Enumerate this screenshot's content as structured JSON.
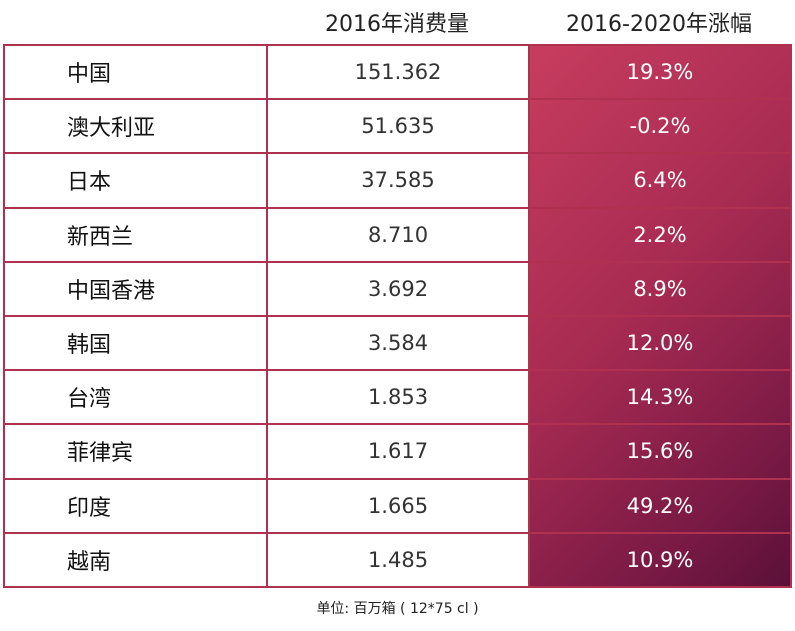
{
  "header": {
    "col2": "2016年消费量",
    "col3": "2016-2020年涨幅"
  },
  "rows": [
    {
      "name": "中国",
      "value": "151.362",
      "growth": "19.3%"
    },
    {
      "name": "澳大利亚",
      "value": "51.635",
      "growth": "-0.2%"
    },
    {
      "name": "日本",
      "value": "37.585",
      "growth": "6.4%"
    },
    {
      "name": "新西兰",
      "value": "8.710",
      "growth": "2.2%"
    },
    {
      "name": "中国香港",
      "value": "3.692",
      "growth": "8.9%"
    },
    {
      "name": "韩国",
      "value": "3.584",
      "growth": "12.0%"
    },
    {
      "name": "台湾",
      "value": "1.853",
      "growth": "14.3%"
    },
    {
      "name": "菲律宾",
      "value": "1.617",
      "growth": "15.6%"
    },
    {
      "name": "印度",
      "value": "1.665",
      "growth": "49.2%"
    },
    {
      "name": "越南",
      "value": "1.485",
      "growth": "10.9%"
    }
  ],
  "footnote": "单位: 百万箱 ( 12*75 cl )",
  "colors": {
    "border": "#b0304f",
    "gradient_start": "#c73d5f",
    "gradient_end": "#5a1038"
  },
  "chart_data": {
    "type": "table",
    "columns": [
      "",
      "2016年消费量",
      "2016-2020年涨幅"
    ],
    "categories": [
      "中国",
      "澳大利亚",
      "日本",
      "新西兰",
      "中国香港",
      "韩国",
      "台湾",
      "菲律宾",
      "印度",
      "越南"
    ],
    "series": [
      {
        "name": "2016年消费量",
        "values": [
          151.362,
          51.635,
          37.585,
          8.71,
          3.692,
          3.584,
          1.853,
          1.617,
          1.665,
          1.485
        ]
      },
      {
        "name": "2016-2020年涨幅",
        "values": [
          19.3,
          -0.2,
          6.4,
          2.2,
          8.9,
          12.0,
          14.3,
          15.6,
          49.2,
          10.9
        ]
      }
    ],
    "note": "单位: 百万箱 ( 12*75 cl )"
  }
}
